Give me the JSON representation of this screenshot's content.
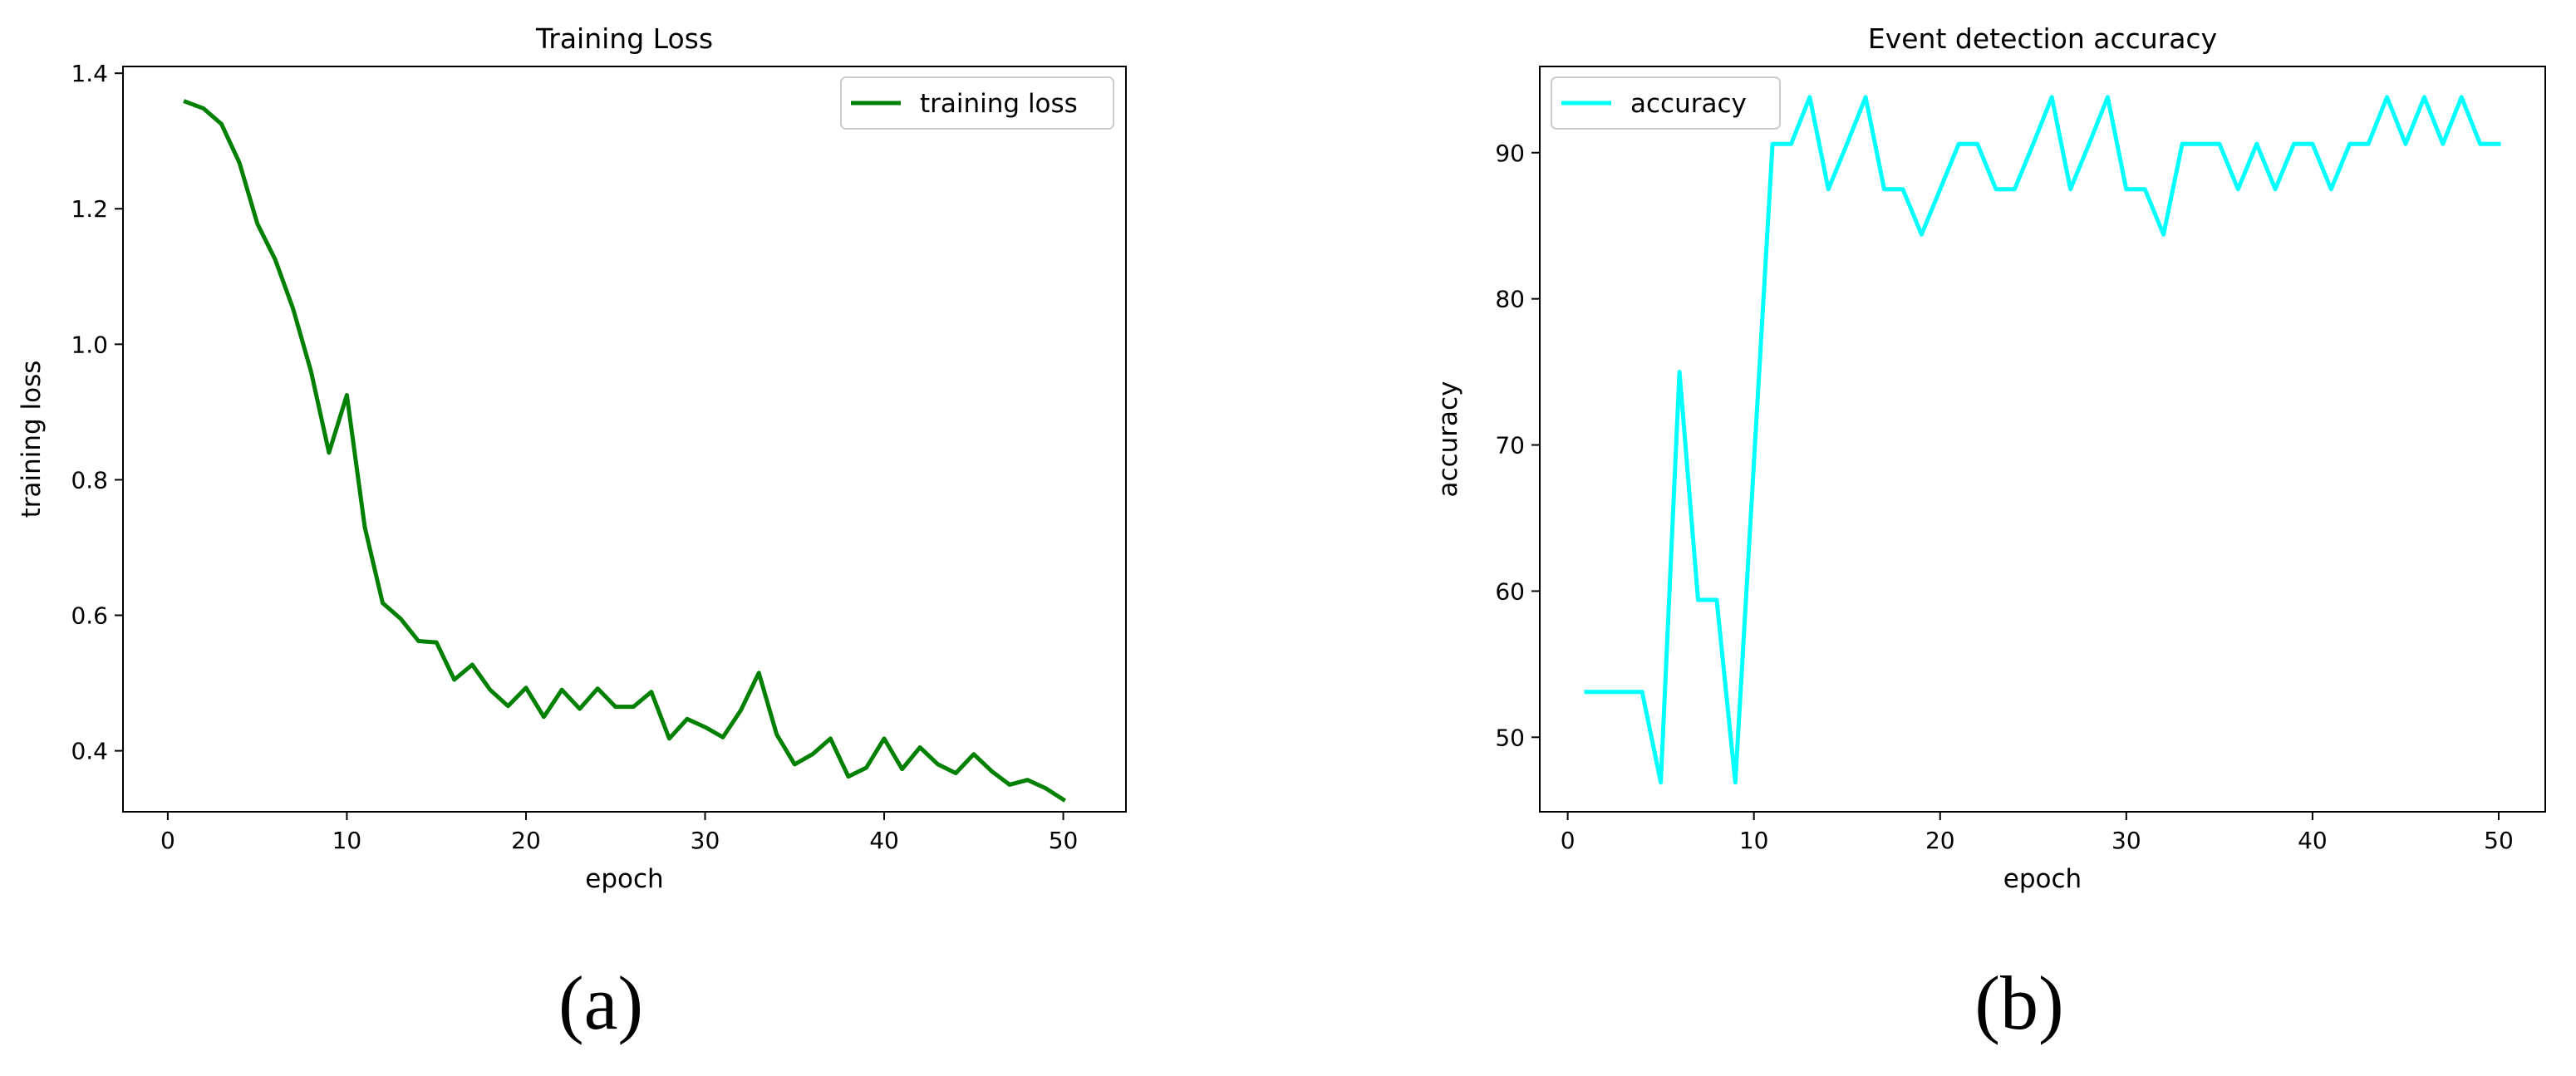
{
  "chart_data": [
    {
      "type": "line",
      "title": "Training Loss",
      "xlabel": "epoch",
      "ylabel": "training loss",
      "caption": "(a)",
      "xlim": [
        -2.5,
        53.5
      ],
      "ylim": [
        0.31,
        1.41
      ],
      "xticks": [
        0,
        10,
        20,
        30,
        40,
        50
      ],
      "yticks": [
        0.4,
        0.6,
        0.8,
        1.0,
        1.2,
        1.4
      ],
      "ytick_decimals": 1,
      "legend": "upper-right",
      "grid": false,
      "series": [
        {
          "name": "training loss",
          "color": "#008000",
          "x": [
            1,
            2,
            3,
            4,
            5,
            6,
            7,
            8,
            9,
            10,
            11,
            12,
            13,
            14,
            15,
            16,
            17,
            18,
            19,
            20,
            21,
            22,
            23,
            24,
            25,
            26,
            27,
            28,
            29,
            30,
            31,
            32,
            33,
            34,
            35,
            36,
            37,
            38,
            39,
            40,
            41,
            42,
            43,
            44,
            45,
            46,
            47,
            48,
            49,
            50
          ],
          "y": [
            1.358,
            1.348,
            1.325,
            1.268,
            1.178,
            1.125,
            1.052,
            0.96,
            0.84,
            0.925,
            0.73,
            0.618,
            0.595,
            0.562,
            0.56,
            0.505,
            0.527,
            0.49,
            0.466,
            0.493,
            0.45,
            0.49,
            0.462,
            0.492,
            0.465,
            0.465,
            0.487,
            0.418,
            0.447,
            0.435,
            0.42,
            0.46,
            0.515,
            0.424,
            0.38,
            0.395,
            0.418,
            0.362,
            0.375,
            0.418,
            0.373,
            0.405,
            0.38,
            0.367,
            0.395,
            0.37,
            0.35,
            0.357,
            0.345,
            0.328
          ]
        }
      ]
    },
    {
      "type": "line",
      "title": "Event detection accuracy",
      "xlabel": "epoch",
      "ylabel": "accuracy",
      "caption": "(b)",
      "xlim": [
        -1.5,
        52.5
      ],
      "ylim": [
        44.9,
        95.9
      ],
      "xticks": [
        0,
        10,
        20,
        30,
        40,
        50
      ],
      "yticks": [
        50,
        60,
        70,
        80,
        90
      ],
      "ytick_decimals": 0,
      "legend": "upper-left",
      "grid": false,
      "series": [
        {
          "name": "accuracy",
          "color": "#00ffff",
          "x": [
            1,
            2,
            3,
            4,
            5,
            6,
            7,
            8,
            9,
            10,
            11,
            12,
            13,
            14,
            15,
            16,
            17,
            18,
            19,
            20,
            21,
            22,
            23,
            24,
            25,
            26,
            27,
            28,
            29,
            30,
            31,
            32,
            33,
            34,
            35,
            36,
            37,
            38,
            39,
            40,
            41,
            42,
            43,
            44,
            45,
            46,
            47,
            48,
            49,
            50
          ],
          "y": [
            53.1,
            53.1,
            53.1,
            53.1,
            46.9,
            75.0,
            59.4,
            59.4,
            46.9,
            68.8,
            90.6,
            90.6,
            93.8,
            87.5,
            90.6,
            93.8,
            87.5,
            87.5,
            84.4,
            87.5,
            90.6,
            90.6,
            87.5,
            87.5,
            90.6,
            93.8,
            87.5,
            90.6,
            93.8,
            87.5,
            87.5,
            84.4,
            90.6,
            90.6,
            90.6,
            87.5,
            90.6,
            87.5,
            90.6,
            90.6,
            87.5,
            90.6,
            90.6,
            93.8,
            90.6,
            93.8,
            90.6,
            93.8,
            90.6,
            90.6
          ]
        }
      ]
    }
  ]
}
